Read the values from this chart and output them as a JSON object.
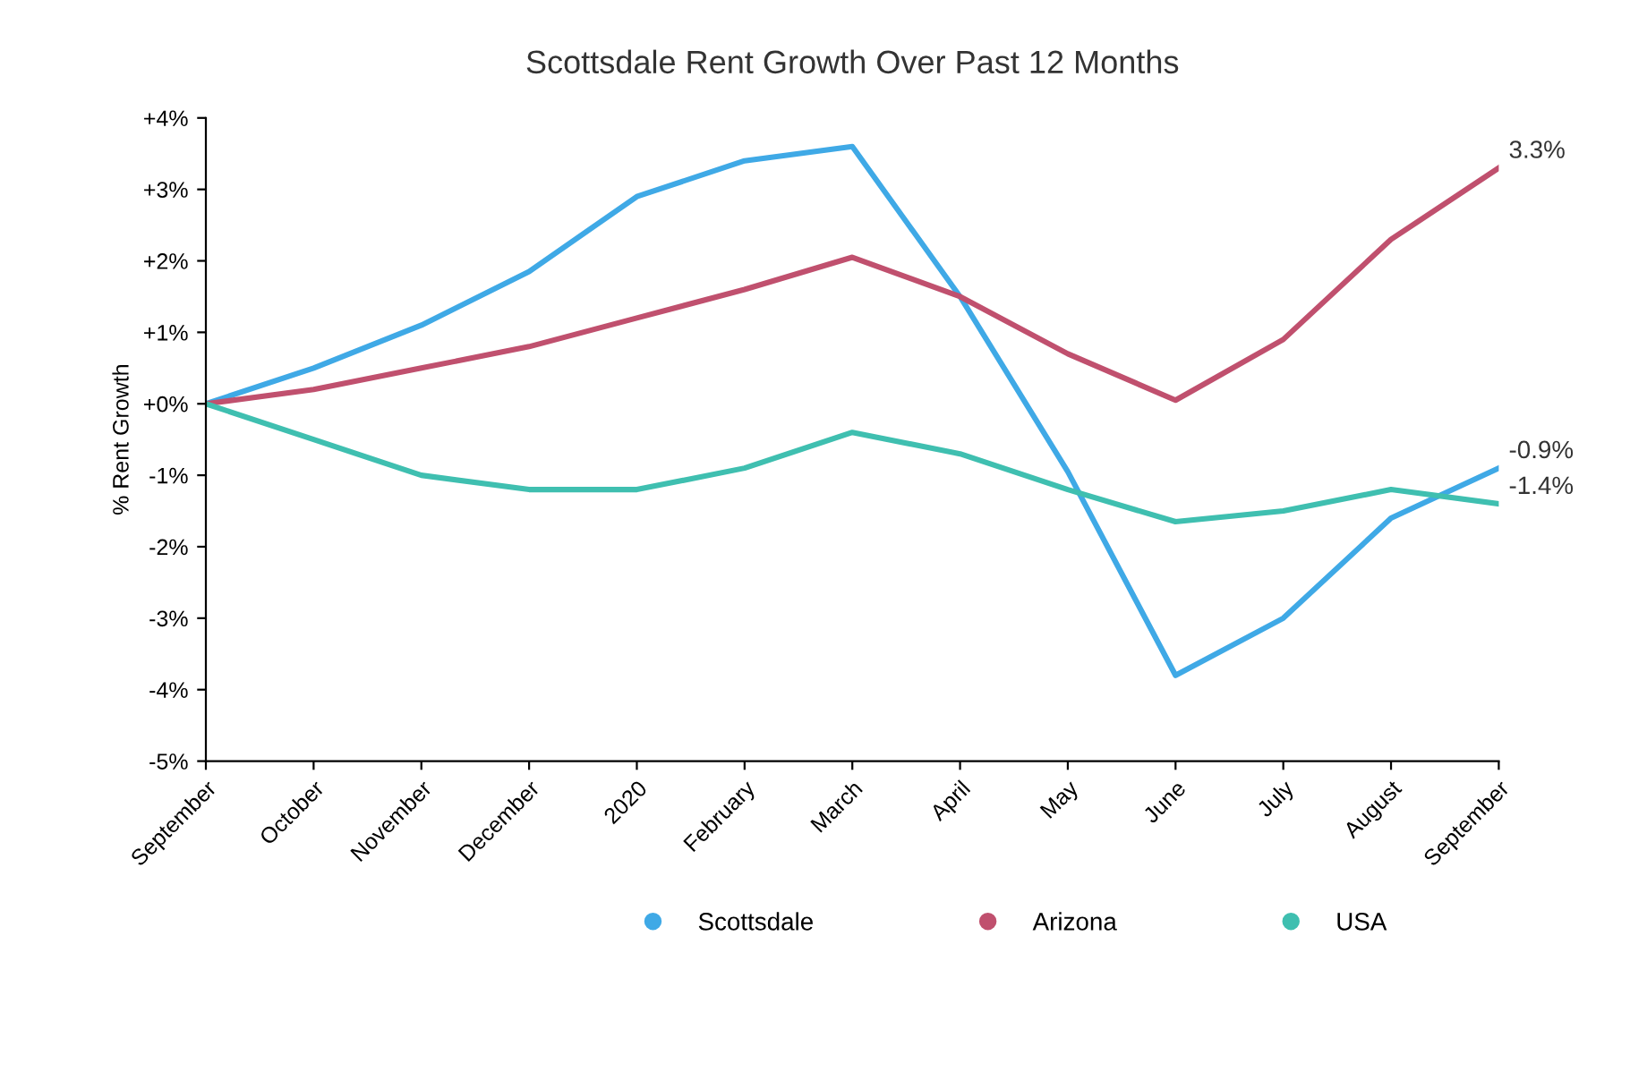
{
  "chart_data": {
    "type": "line",
    "title": "Scottsdale Rent Growth Over Past 12 Months",
    "ylabel": "% Rent Growth",
    "categories": [
      "September",
      "October",
      "November",
      "December",
      "2020",
      "February",
      "March",
      "April",
      "May",
      "June",
      "July",
      "August",
      "September"
    ],
    "series": [
      {
        "name": "Scottsdale",
        "color": "#3fa9e6",
        "values": [
          0,
          0.5,
          1.1,
          1.85,
          2.9,
          3.4,
          3.6,
          1.5,
          -0.95,
          -3.8,
          -3.0,
          -1.6,
          -0.9
        ],
        "value_labels": [
          null,
          null,
          null,
          null,
          null,
          null,
          null,
          null,
          null,
          null,
          null,
          null,
          "-0.9%"
        ]
      },
      {
        "name": "Arizona",
        "color": "#c0506e",
        "values": [
          0,
          0.2,
          0.5,
          0.8,
          1.2,
          1.6,
          2.05,
          1.5,
          0.7,
          0.05,
          0.9,
          2.3,
          3.3
        ],
        "value_labels": [
          null,
          null,
          null,
          null,
          null,
          null,
          null,
          null,
          null,
          null,
          null,
          null,
          "3.3%"
        ]
      },
      {
        "name": "USA",
        "color": "#3fbfb0",
        "values": [
          0,
          -0.5,
          -1.0,
          -1.2,
          -1.2,
          -0.9,
          -0.4,
          -0.7,
          -1.2,
          -1.65,
          -1.5,
          -1.2,
          -1.4
        ],
        "value_labels": [
          null,
          null,
          null,
          null,
          null,
          null,
          null,
          null,
          null,
          null,
          null,
          null,
          "-1.4%"
        ]
      }
    ],
    "ylim": [
      -5,
      4
    ],
    "yticks": [
      {
        "value": 4,
        "label": "+4%"
      },
      {
        "value": 3,
        "label": "+3%"
      },
      {
        "value": 2,
        "label": "+2%"
      },
      {
        "value": 1,
        "label": "+1%"
      },
      {
        "value": 0,
        "label": "+0%"
      },
      {
        "value": -1,
        "label": "-1%"
      },
      {
        "value": -2,
        "label": "-2%"
      },
      {
        "value": -3,
        "label": "-3%"
      },
      {
        "value": -4,
        "label": "-4%"
      },
      {
        "value": -5,
        "label": "-5%"
      }
    ],
    "grid": false,
    "legend": "bottom",
    "marker": "none",
    "line_style": "solid"
  }
}
